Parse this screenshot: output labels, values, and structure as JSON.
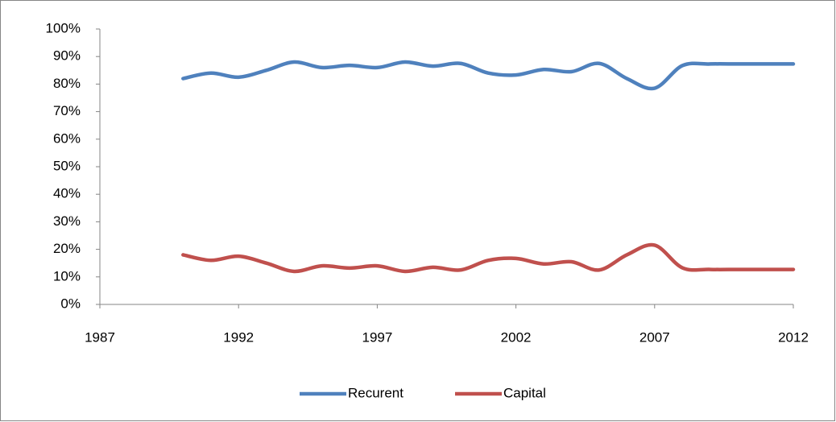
{
  "chart_data": {
    "type": "line",
    "x": [
      1990,
      1991,
      1992,
      1993,
      1994,
      1995,
      1996,
      1997,
      1998,
      1999,
      2000,
      2001,
      2002,
      2003,
      2004,
      2005,
      2006,
      2007,
      2008,
      2009,
      2010,
      2011,
      2012
    ],
    "series": [
      {
        "name": "Recurent",
        "color": "#4f81bd",
        "values": [
          82,
          84,
          82.5,
          85,
          88,
          86,
          86.8,
          86,
          88,
          86.5,
          87.5,
          84,
          83.3,
          85.3,
          84.5,
          87.5,
          82,
          78.5,
          86.7,
          87.3,
          87.3,
          87.3,
          87.3
        ]
      },
      {
        "name": "Capital",
        "color": "#c0504d",
        "values": [
          18,
          16,
          17.5,
          15,
          12,
          14,
          13.2,
          14,
          12,
          13.5,
          12.5,
          16,
          16.7,
          14.7,
          15.5,
          12.5,
          18,
          21.5,
          13.3,
          12.7,
          12.7,
          12.7,
          12.7
        ]
      }
    ],
    "xlim": [
      1987,
      2012
    ],
    "xticks": [
      1987,
      1992,
      1997,
      2002,
      2007,
      2012
    ],
    "ylim": [
      0,
      100
    ],
    "yticks": [
      {
        "value": 0,
        "label": "0%"
      },
      {
        "value": 10,
        "label": "10%"
      },
      {
        "value": 20,
        "label": "20%"
      },
      {
        "value": 30,
        "label": "30%"
      },
      {
        "value": 40,
        "label": "40%"
      },
      {
        "value": 50,
        "label": "50%"
      },
      {
        "value": 60,
        "label": "60%"
      },
      {
        "value": 70,
        "label": "70%"
      },
      {
        "value": 80,
        "label": "80%"
      },
      {
        "value": 90,
        "label": "90%"
      },
      {
        "value": 100,
        "label": "100%"
      }
    ],
    "legend": "bottom"
  }
}
